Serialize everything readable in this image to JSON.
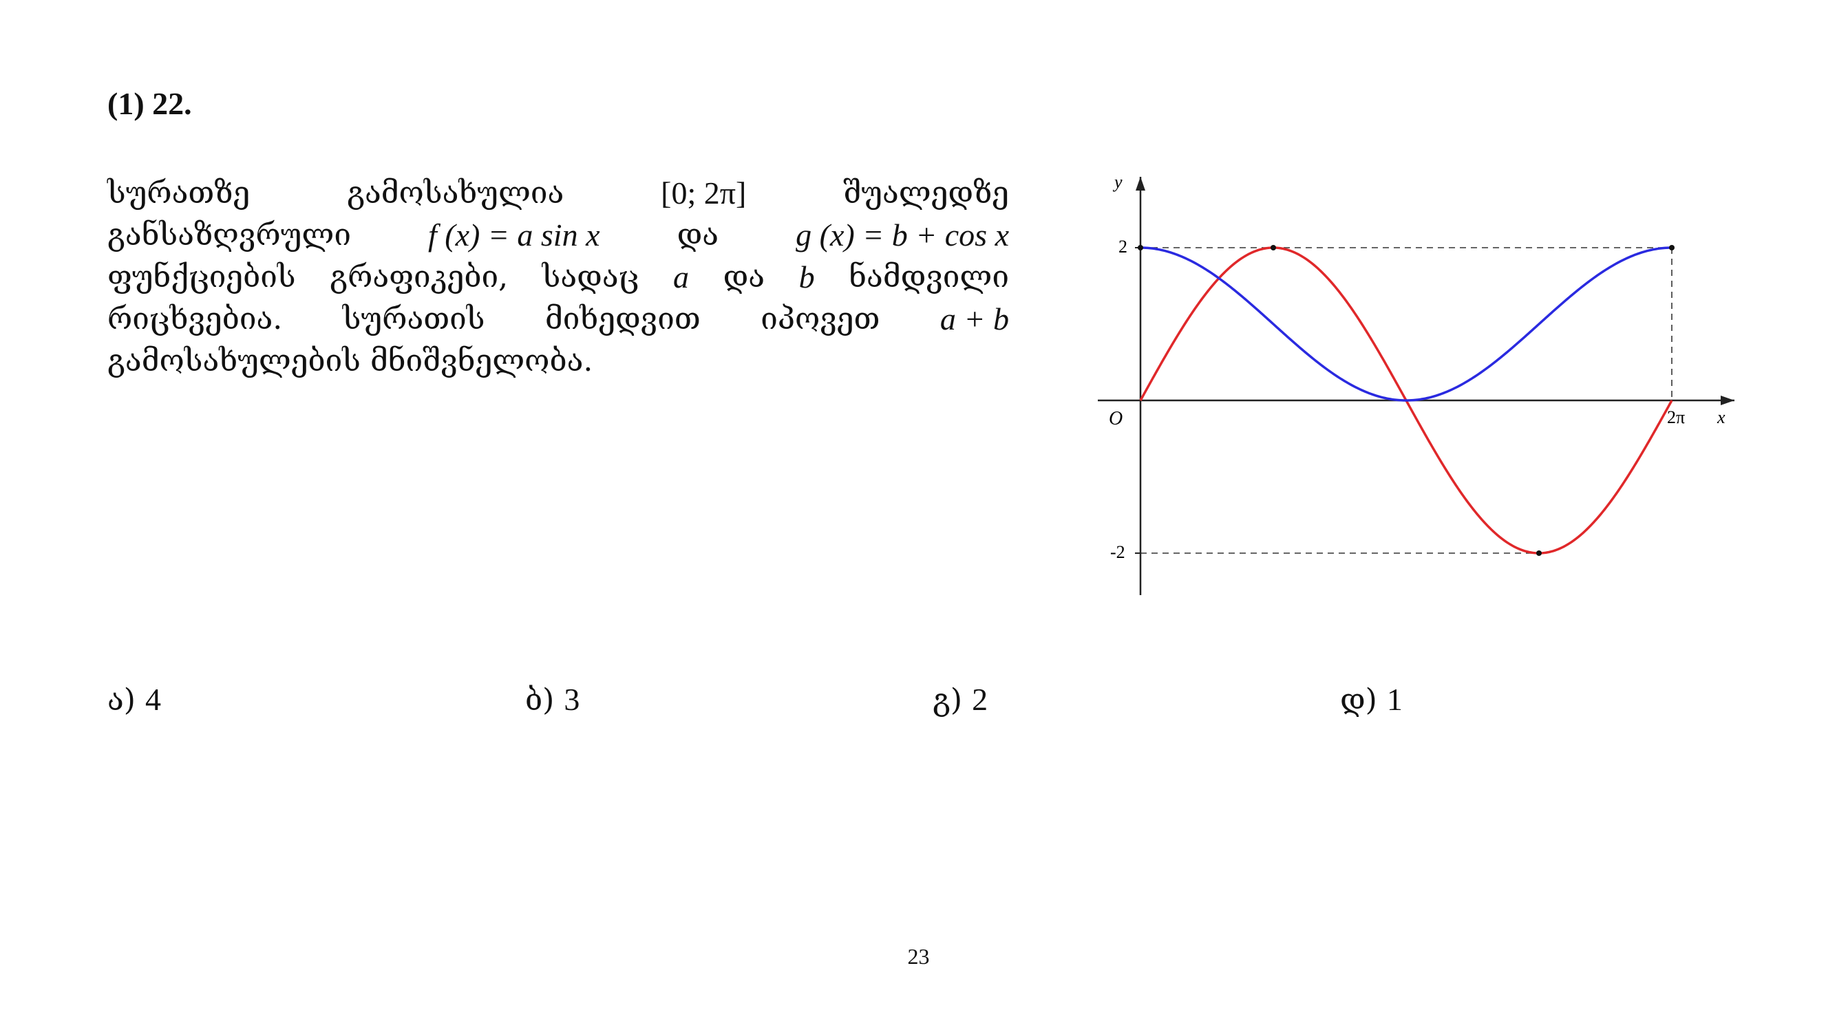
{
  "problem": {
    "number": "(1) 22.",
    "line1": {
      "w1": "სურათზე",
      "w2": "გამოსახულია",
      "interval": "[0; 2π]",
      "w3": "შუალედზე"
    },
    "line2": {
      "w1": "განსაზღვრული",
      "f_def": "f (x) = a sin x",
      "w2": "და",
      "g_def": "g (x) = b + cos x"
    },
    "line3": {
      "w1": "ფუნქციების",
      "w2": "გრაფიკები,",
      "w3": "სადაც",
      "var_a": "a",
      "w4": "და",
      "var_b": "b",
      "w5": "ნამდვილი"
    },
    "line4": {
      "w1": "რიცხვებია.",
      "w2": "სურათის",
      "w3": "მიხედვით",
      "w4": "იპოვეთ",
      "expr": "a + b"
    },
    "line5": {
      "w1": "გამოსახულების მნიშვნელობა."
    }
  },
  "chart_data": {
    "type": "line",
    "x_axis_label": "x",
    "y_axis_label": "y",
    "origin_label": "O",
    "x_tick_label": "2π",
    "y_tick_labels": [
      "2",
      "-2"
    ],
    "xlim": [
      0,
      6.2832
    ],
    "ylim": [
      -2.5,
      3.0
    ],
    "series": [
      {
        "function": "f(x) = 2 sin x",
        "color": "#e0282a",
        "amplitude": 2,
        "shift": 0,
        "kind": "sin"
      },
      {
        "function": "g(x) = 1 + cos x",
        "color": "#2a2ae0",
        "amplitude": 1,
        "shift": 1,
        "kind": "cos"
      }
    ],
    "marked_points": [
      {
        "x": 1.5708,
        "y": 2
      },
      {
        "x": 4.7124,
        "y": -2
      },
      {
        "x": 0,
        "y": 2
      },
      {
        "x": 6.2832,
        "y": 2
      }
    ],
    "dashed_guides": [
      {
        "from": [
          0,
          2
        ],
        "to": [
          6.2832,
          2
        ]
      },
      {
        "from": [
          0,
          -2
        ],
        "to": [
          4.7124,
          -2
        ]
      },
      {
        "from": [
          6.2832,
          2
        ],
        "to": [
          6.2832,
          0
        ]
      }
    ]
  },
  "answers": [
    {
      "label": "ა)",
      "value": "4"
    },
    {
      "label": "ბ)",
      "value": "3"
    },
    {
      "label": "გ)",
      "value": "2"
    },
    {
      "label": "დ)",
      "value": "1"
    }
  ],
  "page_number": "23"
}
